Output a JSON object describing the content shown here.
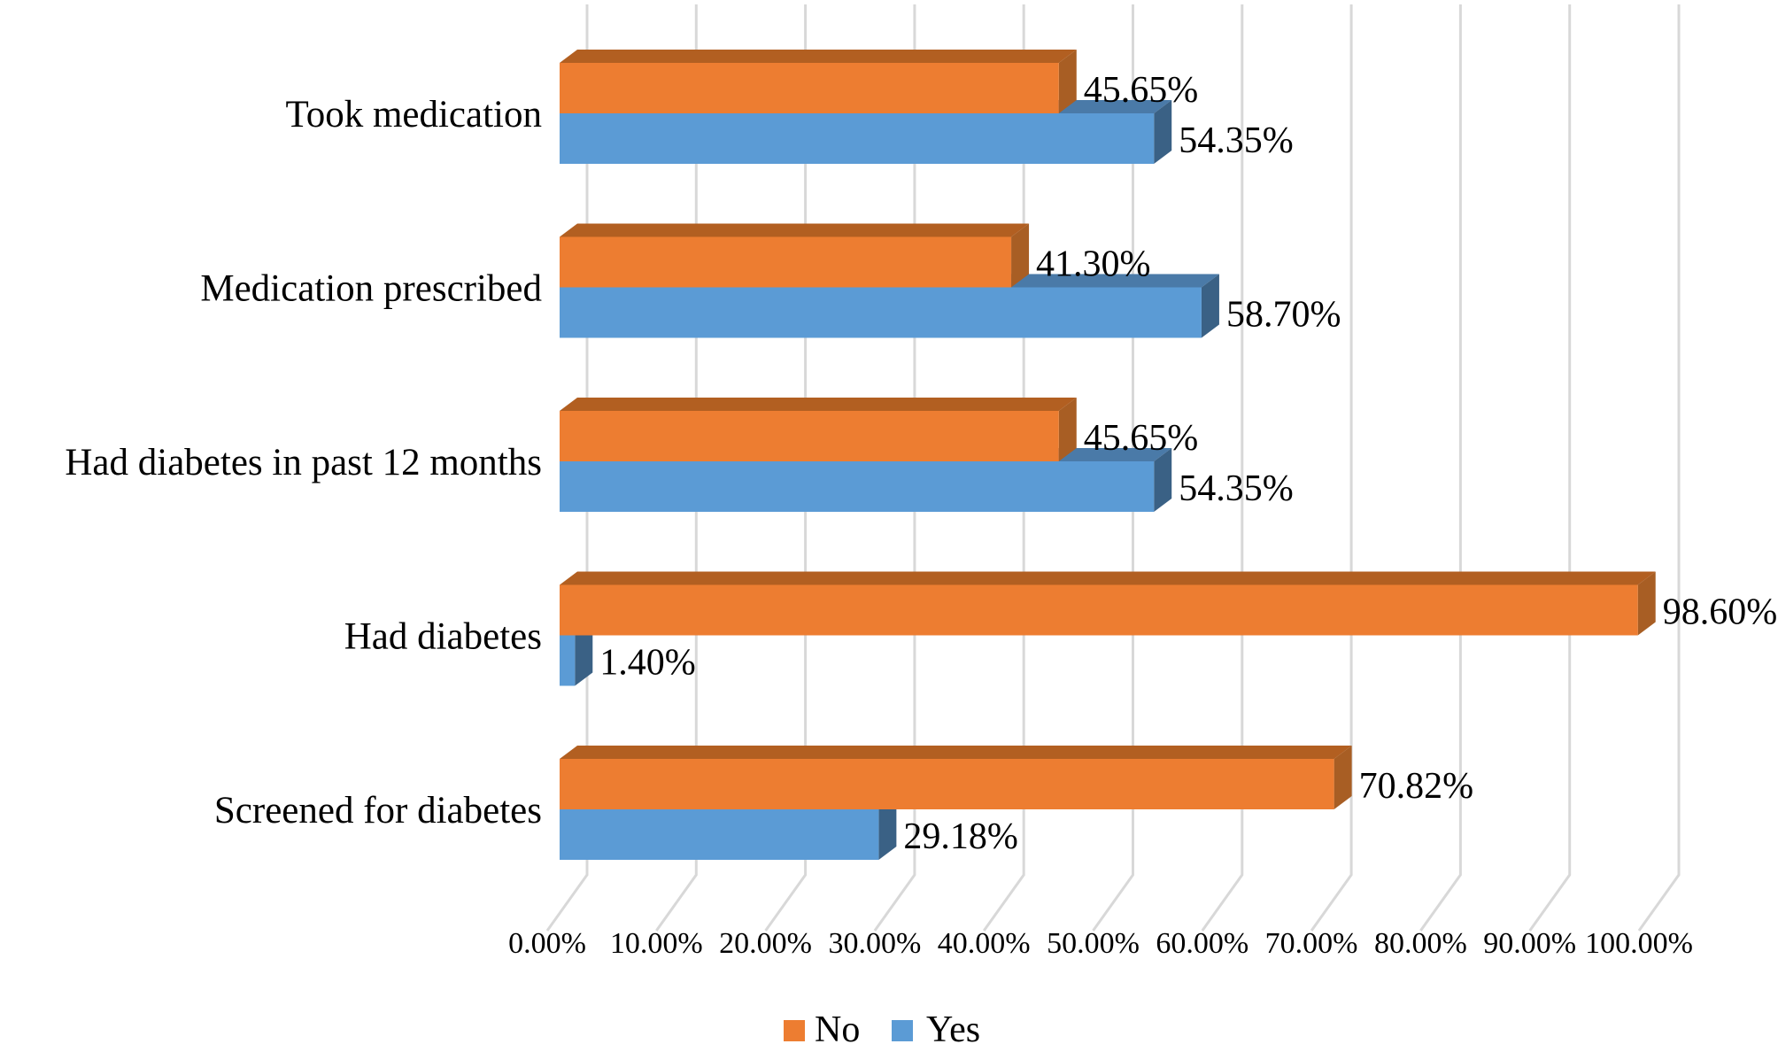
{
  "figure": {
    "background": "#FFFFFF",
    "title": ""
  },
  "chart_data": {
    "type": "bar",
    "orientation": "horizontal",
    "effect": "3d",
    "title": "",
    "xlabel": "",
    "ylabel": "",
    "categories": [
      "Took medication",
      "Medication prescribed",
      "Had diabetes in past 12 months",
      "Had diabetes",
      "Screened for diabetes"
    ],
    "series": [
      {
        "name": "No",
        "color": "#ED7D31",
        "color_top": "#B25F21",
        "color_side": "#A85E24",
        "values": [
          45.65,
          41.3,
          45.65,
          98.6,
          70.82
        ],
        "labels": [
          "45.65%",
          "41.30%",
          "45.65%",
          "98.60%",
          "70.82%"
        ]
      },
      {
        "name": "Yes",
        "color": "#5B9BD5",
        "color_top": "#4A7AA8",
        "color_side": "#3A6185",
        "values": [
          54.35,
          58.7,
          54.35,
          1.4,
          29.18
        ],
        "labels": [
          "54.35%",
          "58.70%",
          "54.35%",
          "1.40%",
          "29.18%"
        ]
      }
    ],
    "x_axis": {
      "min": 0,
      "max": 100,
      "tick_step": 10,
      "tick_labels": [
        "0.00%",
        "10.00%",
        "20.00%",
        "30.00%",
        "40.00%",
        "50.00%",
        "60.00%",
        "70.00%",
        "80.00%",
        "90.00%",
        "100.00%"
      ]
    },
    "y_axis": {
      "labels_side": "left"
    },
    "gridlines": {
      "visible": true,
      "color": "#D8D8D8"
    },
    "legend": {
      "position": "bottom",
      "entries": [
        "No",
        "Yes"
      ]
    }
  }
}
